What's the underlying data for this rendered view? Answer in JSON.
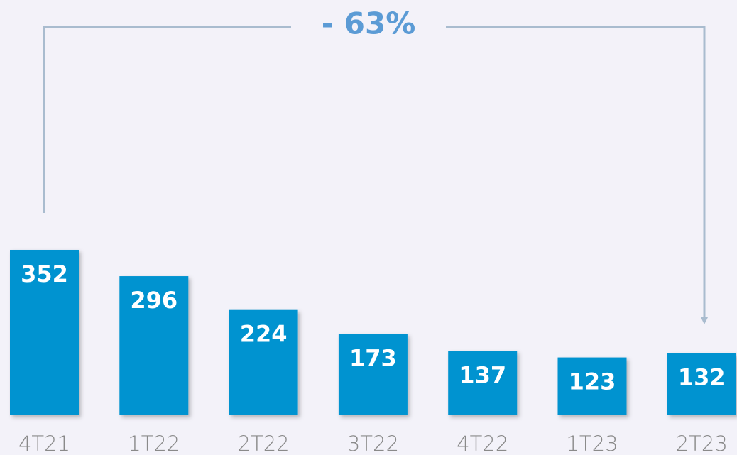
{
  "chart_data": {
    "type": "bar",
    "annotation": "- 63%",
    "categories": [
      "4T21",
      "1T22",
      "2T22",
      "3T22",
      "4T22",
      "1T23",
      "2T23"
    ],
    "values": [
      352,
      296,
      224,
      173,
      137,
      123,
      132
    ],
    "color": "#0593d0"
  }
}
